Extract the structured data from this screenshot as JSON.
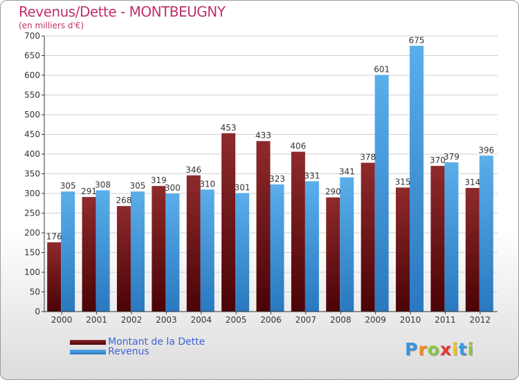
{
  "chart_data": {
    "type": "bar",
    "title": "Revenus/Dette - MONTBEUGNY",
    "subtitle": "(en milliers d'€)",
    "categories": [
      "2000",
      "2001",
      "2002",
      "2003",
      "2004",
      "2005",
      "2006",
      "2007",
      "2008",
      "2009",
      "2010",
      "2011",
      "2012"
    ],
    "series": [
      {
        "name": "Montant de la Dette",
        "color": "#7a1618",
        "values": [
          176,
          291,
          268,
          319,
          346,
          453,
          433,
          406,
          290,
          378,
          315,
          370,
          314
        ]
      },
      {
        "name": "Revenus",
        "color": "#3a96de",
        "values": [
          305,
          308,
          305,
          300,
          310,
          301,
          323,
          331,
          341,
          601,
          675,
          379,
          396
        ]
      }
    ],
    "ylim": [
      0,
      700
    ],
    "yticks": [
      0,
      50,
      100,
      150,
      200,
      250,
      300,
      350,
      400,
      450,
      500,
      550,
      600,
      650,
      700
    ],
    "grid": true,
    "legend_position": "bottom-left"
  },
  "legend": {
    "items": [
      {
        "label": "Montant de la Dette",
        "color": "#7a1618"
      },
      {
        "label": "Revenus",
        "color": "#3a96de"
      }
    ]
  },
  "brand": {
    "letters": [
      "P",
      "r",
      "o",
      "x",
      "i",
      "t",
      "i"
    ],
    "colors": [
      "#3a96de",
      "#f08a1c",
      "#8cc63f",
      "#e53935",
      "#f5c400",
      "#3a96de",
      "#8cc63f"
    ]
  }
}
